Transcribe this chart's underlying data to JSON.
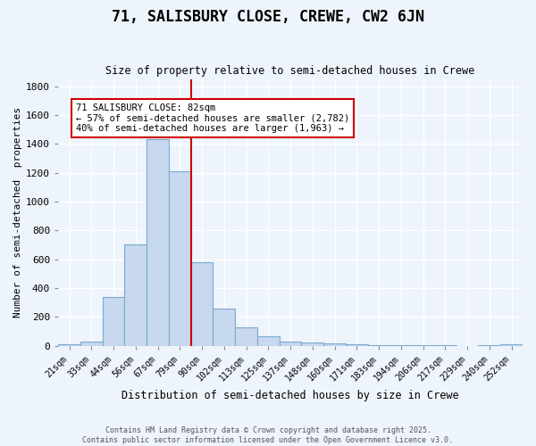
{
  "title": "71, SALISBURY CLOSE, CREWE, CW2 6JN",
  "subtitle": "Size of property relative to semi-detached houses in Crewe",
  "xlabel": "Distribution of semi-detached houses by size in Crewe",
  "ylabel": "Number of semi-detached  properties",
  "footer_line1": "Contains HM Land Registry data © Crown copyright and database right 2025.",
  "footer_line2": "Contains public sector information licensed under the Open Government Licence v3.0.",
  "categories": [
    "21sqm",
    "33sqm",
    "44sqm",
    "56sqm",
    "67sqm",
    "79sqm",
    "90sqm",
    "102sqm",
    "113sqm",
    "125sqm",
    "137sqm",
    "148sqm",
    "160sqm",
    "171sqm",
    "183sqm",
    "194sqm",
    "206sqm",
    "217sqm",
    "229sqm",
    "240sqm",
    "252sqm"
  ],
  "values": [
    10,
    30,
    340,
    700,
    1430,
    1210,
    580,
    260,
    125,
    65,
    28,
    20,
    15,
    8,
    5,
    3,
    3,
    2,
    0,
    2,
    10
  ],
  "bar_color": "#c8d8ee",
  "bar_edge_color": "#7aaad0",
  "grid_color": "#c8d8ee",
  "vline_x_index": 5,
  "vline_color": "#cc0000",
  "annotation_title": "71 SALISBURY CLOSE: 82sqm",
  "annotation_line1": "← 57% of semi-detached houses are smaller (2,782)",
  "annotation_line2": "40% of semi-detached houses are larger (1,963) →",
  "annotation_box_color": "#ffffff",
  "annotation_box_edge": "#cc0000",
  "ylim": [
    0,
    1850
  ],
  "yticks": [
    0,
    200,
    400,
    600,
    800,
    1000,
    1200,
    1400,
    1600,
    1800
  ],
  "bg_color": "#eef4fb",
  "figsize": [
    6.0,
    5.0
  ],
  "dpi": 100
}
